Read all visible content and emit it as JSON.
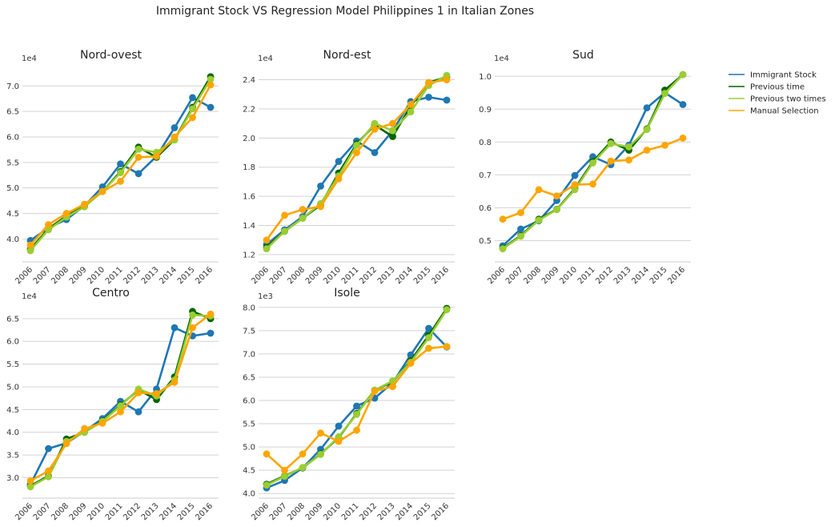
{
  "figure_title": "Immigrant Stock VS Regression Model Philippines 1 in Italian Zones",
  "legend": [
    {
      "label": "Immigrant Stock",
      "color": "#1f77b4"
    },
    {
      "label": "Previous time",
      "color": "#006400"
    },
    {
      "label": "Previous two times",
      "color": "#9acd32"
    },
    {
      "label": "Manual Selection",
      "color": "#ffa500"
    }
  ],
  "chart_data": [
    {
      "type": "line",
      "title": "Nord-ovest",
      "exponent_label": "1e4",
      "x": [
        "2006",
        "2007",
        "2008",
        "2009",
        "2010",
        "2011",
        "2012",
        "2013",
        "2014",
        "2015",
        "2016"
      ],
      "ylim": [
        3.55,
        7.35
      ],
      "yticks": [
        "4.0",
        "4.5",
        "5.0",
        "5.5",
        "6.0",
        "6.5",
        "7.0"
      ],
      "grid": true,
      "series": [
        {
          "name": "Immigrant Stock",
          "color": "#1f77b4",
          "values": [
            3.97,
            4.22,
            4.38,
            4.65,
            5.02,
            5.47,
            5.28,
            5.62,
            6.18,
            6.77,
            6.58
          ]
        },
        {
          "name": "Previous time",
          "color": "#006400",
          "values": [
            3.8,
            4.2,
            4.45,
            4.64,
            4.93,
            5.32,
            5.8,
            5.6,
            5.95,
            6.58,
            7.18
          ]
        },
        {
          "name": "Previous two times",
          "color": "#9acd32",
          "values": [
            3.77,
            4.18,
            4.43,
            4.63,
            4.93,
            5.3,
            5.76,
            5.7,
            5.94,
            6.55,
            7.13
          ]
        },
        {
          "name": "Manual Selection",
          "color": "#ffa500",
          "values": [
            3.88,
            4.28,
            4.5,
            4.68,
            4.93,
            5.13,
            5.6,
            5.62,
            6.0,
            6.38,
            7.02
          ]
        }
      ]
    },
    {
      "type": "line",
      "title": "Nord-est",
      "exponent_label": "1e4",
      "x": [
        "2006",
        "2007",
        "2008",
        "2009",
        "2010",
        "2011",
        "2012",
        "2013",
        "2014",
        "2015",
        "2016"
      ],
      "ylim": [
        1.15,
        2.48
      ],
      "yticks": [
        "1.2",
        "1.4",
        "1.6",
        "1.8",
        "2.0",
        "2.2",
        "2.4"
      ],
      "grid": true,
      "series": [
        {
          "name": "Immigrant Stock",
          "color": "#1f77b4",
          "values": [
            1.27,
            1.37,
            1.46,
            1.67,
            1.84,
            1.98,
            1.9,
            2.05,
            2.25,
            2.28,
            2.26
          ]
        },
        {
          "name": "Previous time",
          "color": "#006400",
          "values": [
            1.25,
            1.36,
            1.45,
            1.54,
            1.76,
            1.96,
            2.09,
            2.01,
            2.22,
            2.38,
            2.42
          ]
        },
        {
          "name": "Previous two times",
          "color": "#9acd32",
          "values": [
            1.24,
            1.36,
            1.45,
            1.55,
            1.74,
            1.95,
            2.1,
            2.05,
            2.18,
            2.36,
            2.43
          ]
        },
        {
          "name": "Manual Selection",
          "color": "#ffa500",
          "values": [
            1.3,
            1.47,
            1.51,
            1.53,
            1.72,
            1.9,
            2.06,
            2.1,
            2.23,
            2.38,
            2.4
          ]
        }
      ]
    },
    {
      "type": "line",
      "title": "Sud",
      "exponent_label": "1e4",
      "x": [
        "2006",
        "2007",
        "2008",
        "2009",
        "2010",
        "2011",
        "2012",
        "2013",
        "2014",
        "2015",
        "2016"
      ],
      "ylim": [
        0.435,
        1.025
      ],
      "yticks": [
        "0.5",
        "0.6",
        "0.7",
        "0.8",
        "0.9",
        "1.0"
      ],
      "grid": true,
      "series": [
        {
          "name": "Immigrant Stock",
          "color": "#1f77b4",
          "values": [
            0.484,
            0.535,
            0.56,
            0.622,
            0.698,
            0.755,
            0.731,
            0.79,
            0.904,
            0.95,
            0.914
          ]
        },
        {
          "name": "Previous time",
          "color": "#006400",
          "values": [
            0.477,
            0.515,
            0.565,
            0.595,
            0.658,
            0.74,
            0.8,
            0.775,
            0.84,
            0.958,
            1.005
          ]
        },
        {
          "name": "Previous two times",
          "color": "#9acd32",
          "values": [
            0.475,
            0.513,
            0.562,
            0.594,
            0.655,
            0.736,
            0.795,
            0.785,
            0.838,
            0.948,
            1.005
          ]
        },
        {
          "name": "Manual Selection",
          "color": "#ffa500",
          "values": [
            0.565,
            0.585,
            0.655,
            0.636,
            0.67,
            0.672,
            0.742,
            0.745,
            0.775,
            0.79,
            0.812
          ]
        }
      ]
    },
    {
      "type": "line",
      "title": "Centro",
      "exponent_label": "1e4",
      "x": [
        "2006",
        "2007",
        "2008",
        "2009",
        "2010",
        "2011",
        "2012",
        "2013",
        "2014",
        "2015",
        "2016"
      ],
      "ylim": [
        2.55,
        6.85
      ],
      "yticks": [
        "3.0",
        "3.5",
        "4.0",
        "4.5",
        "5.0",
        "5.5",
        "6.0",
        "6.5"
      ],
      "grid": true,
      "series": [
        {
          "name": "Immigrant Stock",
          "color": "#1f77b4",
          "values": [
            2.85,
            3.64,
            3.76,
            4.02,
            4.3,
            4.68,
            4.45,
            4.95,
            6.3,
            6.12,
            6.18
          ]
        },
        {
          "name": "Previous time",
          "color": "#006400",
          "values": [
            2.82,
            3.04,
            3.85,
            4.0,
            4.25,
            4.6,
            4.93,
            4.72,
            5.22,
            6.66,
            6.5
          ]
        },
        {
          "name": "Previous two times",
          "color": "#9acd32",
          "values": [
            2.8,
            3.02,
            3.8,
            4.0,
            4.24,
            4.58,
            4.95,
            4.8,
            5.15,
            6.58,
            6.56
          ]
        },
        {
          "name": "Manual Selection",
          "color": "#ffa500",
          "values": [
            2.93,
            3.15,
            3.75,
            4.08,
            4.2,
            4.45,
            4.87,
            4.85,
            5.1,
            6.3,
            6.6
          ]
        }
      ]
    },
    {
      "type": "line",
      "title": "Isole",
      "exponent_label": "1e3",
      "x": [
        "2006",
        "2007",
        "2008",
        "2009",
        "2010",
        "2011",
        "2012",
        "2013",
        "2014",
        "2015",
        "2016"
      ],
      "ylim": [
        3.9,
        8.1
      ],
      "yticks": [
        "4.0",
        "4.5",
        "5.0",
        "5.5",
        "6.0",
        "6.5",
        "7.0",
        "7.5",
        "8.0"
      ],
      "grid": true,
      "series": [
        {
          "name": "Immigrant Stock",
          "color": "#1f77b4",
          "values": [
            4.12,
            4.28,
            4.55,
            4.95,
            5.45,
            5.88,
            6.05,
            6.38,
            6.98,
            7.55,
            7.15
          ]
        },
        {
          "name": "Previous time",
          "color": "#006400",
          "values": [
            4.2,
            4.38,
            4.55,
            4.85,
            5.2,
            5.72,
            6.22,
            6.4,
            6.85,
            7.4,
            7.98
          ]
        },
        {
          "name": "Previous two times",
          "color": "#9acd32",
          "values": [
            4.18,
            4.37,
            4.56,
            4.84,
            5.22,
            5.7,
            6.22,
            6.42,
            6.82,
            7.35,
            7.95
          ]
        },
        {
          "name": "Manual Selection",
          "color": "#ffa500",
          "values": [
            4.85,
            4.5,
            4.85,
            5.3,
            5.12,
            5.36,
            6.2,
            6.3,
            6.8,
            7.12,
            7.16
          ]
        }
      ]
    }
  ]
}
